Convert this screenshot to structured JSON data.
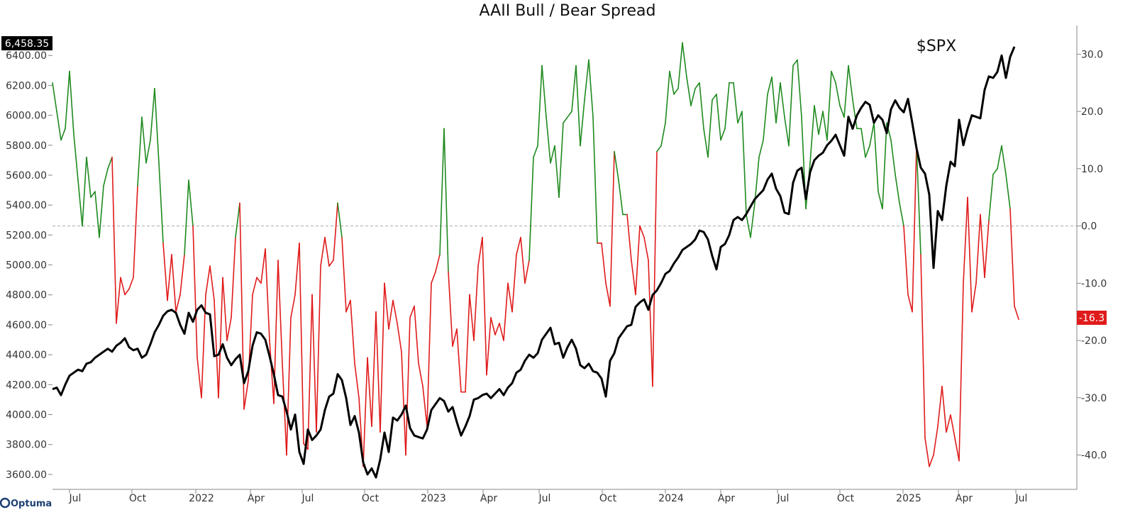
{
  "chart_data": {
    "type": "line",
    "title": "AAII Bull / Bear Spread",
    "symbol_label": "$SPX",
    "price_flag": "6,458.35",
    "spread_flag": "-16.3",
    "logo": "Optuma",
    "x_ticks": [
      "Jul",
      "Oct",
      "2022",
      "Apr",
      "Jul",
      "Oct",
      "2023",
      "Apr",
      "Jul",
      "Oct",
      "2024",
      "Apr",
      "Jul",
      "Oct",
      "2025",
      "Apr",
      "Jul"
    ],
    "left_axis": {
      "ylim": [
        3500,
        6600
      ],
      "ticks": [
        "3600.00",
        "3800.00",
        "4000.00",
        "4200.00",
        "4400.00",
        "4600.00",
        "4800.00",
        "5000.00",
        "5200.00",
        "5400.00",
        "5600.00",
        "5800.00",
        "6000.00",
        "6200.00",
        "6400.00"
      ]
    },
    "right_axis": {
      "ylim": [
        -46,
        35
      ],
      "ticks": [
        "30.0",
        "20.0",
        "10.0",
        "0.0",
        "-10.0",
        "-20.0",
        "-30.0",
        "-40.0"
      ],
      "zero_line": 0
    },
    "colors": {
      "spx": "#000000",
      "spread_positive": "#1f8a1f",
      "spread_negative": "#e01b1b",
      "price_flag_bg": "#000000",
      "spread_flag_bg": "#e01b1b"
    },
    "series": [
      {
        "axis": "left",
        "x_start": "2021-05-14",
        "values": [
          4170,
          4180,
          4130,
          4200,
          4260,
          4280,
          4300,
          4290,
          4340,
          4350,
          4380,
          4400,
          4420,
          4440,
          4420,
          4460,
          4480,
          4510,
          4450,
          4430,
          4440,
          4380,
          4400,
          4470,
          4550,
          4600,
          4660,
          4690,
          4700,
          4680,
          4600,
          4540,
          4680,
          4620,
          4700,
          4730,
          4680,
          4670,
          4390,
          4400,
          4470,
          4380,
          4330,
          4370,
          4400,
          4210,
          4290,
          4460,
          4550,
          4540,
          4500,
          4390,
          4270,
          4130,
          4120,
          4020,
          3900,
          4000,
          3750,
          3670,
          3900,
          3830,
          3860,
          3900,
          4030,
          4120,
          4140,
          4270,
          4230,
          4110,
          3930,
          3990,
          3880,
          3680,
          3600,
          3640,
          3580,
          3700,
          3880,
          3750,
          3980,
          3960,
          4000,
          4060,
          3910,
          3860,
          3850,
          3840,
          3900,
          4030,
          4070,
          4110,
          4090,
          4020,
          4050,
          3950,
          3860,
          3920,
          3990,
          4100,
          4110,
          4130,
          4140,
          4110,
          4140,
          4170,
          4130,
          4180,
          4210,
          4280,
          4300,
          4360,
          4400,
          4380,
          4410,
          4500,
          4540,
          4580,
          4470,
          4480,
          4380,
          4450,
          4500,
          4440,
          4330,
          4310,
          4340,
          4290,
          4280,
          4240,
          4120,
          4360,
          4410,
          4510,
          4550,
          4590,
          4600,
          4720,
          4750,
          4770,
          4700,
          4800,
          4830,
          4880,
          4940,
          4960,
          5010,
          5050,
          5100,
          5120,
          5140,
          5170,
          5230,
          5220,
          5170,
          5060,
          4970,
          5120,
          5140,
          5200,
          5300,
          5320,
          5300,
          5340,
          5390,
          5440,
          5470,
          5500,
          5570,
          5610,
          5510,
          5460,
          5350,
          5340,
          5550,
          5630,
          5650,
          5440,
          5620,
          5700,
          5730,
          5750,
          5800,
          5830,
          5870,
          5800,
          5730,
          5990,
          5910,
          6000,
          6050,
          6090,
          6070,
          5950,
          6000,
          5970,
          5880,
          6040,
          6100,
          6050,
          6020,
          6110,
          5950,
          5780,
          5650,
          5610,
          5470,
          4980,
          5360,
          5300,
          5530,
          5690,
          5660,
          5970,
          5800,
          5910,
          6000,
          5990,
          5980,
          6170,
          6260,
          6250,
          6290,
          6400,
          6250,
          6390,
          6458.35
        ]
      },
      {
        "axis": "right",
        "x_start": "2021-05-14",
        "values": [
          25,
          20,
          15,
          17,
          27,
          16,
          8,
          0,
          12,
          5,
          6,
          -2,
          7,
          10,
          12,
          -17,
          -9,
          -12,
          -11,
          -9,
          7,
          19,
          11,
          15,
          24,
          11,
          -3,
          -13,
          -5,
          -15,
          -12,
          -5,
          8,
          0,
          -23,
          -30,
          -12,
          -7,
          -13,
          -30,
          -9,
          -20,
          -16,
          -2,
          4,
          -32,
          -27,
          -12,
          -9,
          -10,
          -4,
          -20,
          -31,
          -6,
          -24,
          -40,
          -16,
          -12,
          -3,
          -38,
          -39,
          -12,
          -36,
          -7,
          -2,
          -7,
          -6,
          4,
          -2,
          -15,
          -13,
          -24,
          -30,
          -42,
          -23,
          -35,
          -15,
          -36,
          -10,
          -18,
          -13,
          -17,
          -22,
          -40,
          -16,
          -14,
          -24,
          -28,
          -35,
          -10,
          -8,
          -5,
          17,
          -8,
          -21,
          -18,
          -29,
          -29,
          -12,
          -20,
          -7,
          -2,
          -26,
          -16,
          -19,
          -17,
          -20,
          -10,
          -15,
          -5,
          -2,
          -10,
          -6,
          12,
          14,
          28,
          19,
          11,
          14,
          5,
          18,
          19,
          20,
          28,
          14,
          22,
          29,
          19,
          -3,
          -3,
          -10,
          -14,
          13,
          8,
          2,
          2,
          -6,
          -12,
          0,
          -2,
          -6,
          -28,
          13,
          14,
          18,
          27,
          23,
          24,
          32,
          26,
          21,
          24,
          25,
          17,
          12,
          22,
          23,
          15,
          17,
          25,
          25,
          18,
          20,
          2,
          -2,
          4,
          12,
          15,
          23,
          26,
          18,
          25,
          19,
          14,
          28,
          29,
          19,
          3,
          11,
          21,
          16,
          20,
          15,
          27,
          25,
          21,
          19,
          28,
          22,
          17,
          17,
          12,
          14,
          18,
          6,
          3,
          18,
          15,
          9,
          4,
          0,
          -12,
          -15,
          14,
          -5,
          -37,
          -42,
          -40,
          -35,
          -28,
          -36,
          -33,
          -37,
          -41,
          -10,
          5,
          -15,
          -10,
          2,
          -9,
          1,
          9,
          10,
          14,
          9,
          3,
          -14,
          -16.3
        ]
      }
    ]
  }
}
